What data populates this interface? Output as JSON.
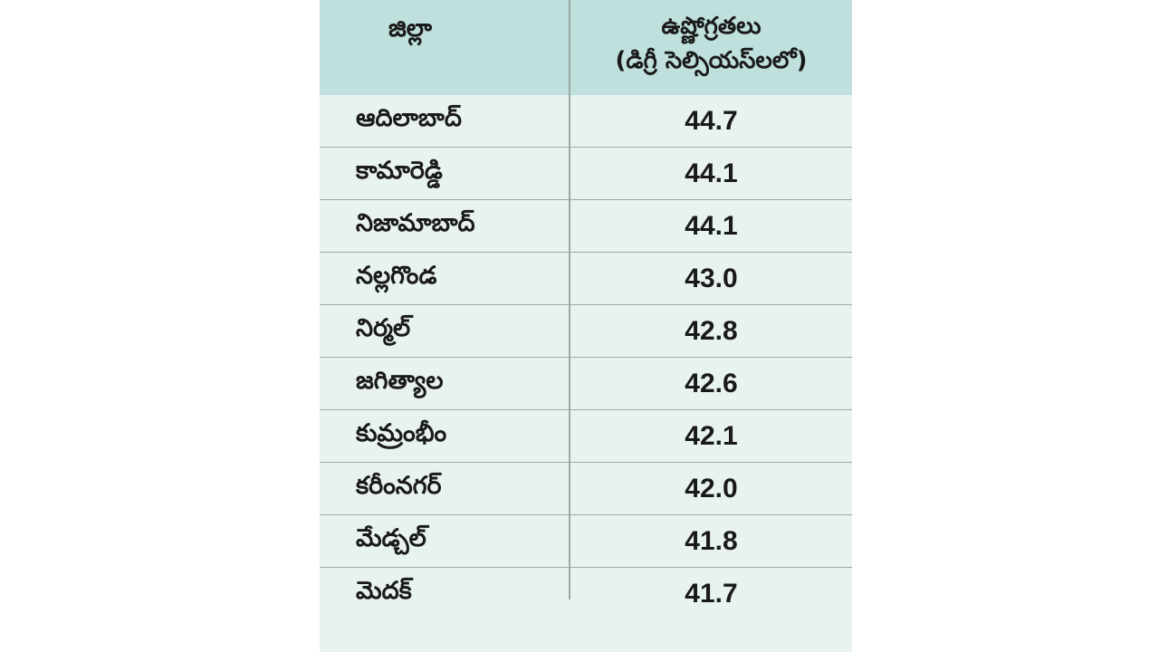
{
  "table": {
    "header": {
      "district": "జిల్లా",
      "temperature_line1": "ఉష్ణోగ్రతలు",
      "temperature_line2": "(డిగ్రీ సెల్సియస్‌లలో)"
    },
    "rows": [
      {
        "district": "ఆదిలాబాద్",
        "temperature": "44.7"
      },
      {
        "district": "కామారెడ్డి",
        "temperature": "44.1"
      },
      {
        "district": "నిజామాబాద్",
        "temperature": "44.1"
      },
      {
        "district": "నల్లగొండ",
        "temperature": "43.0"
      },
      {
        "district": "నిర్మల్",
        "temperature": "42.8"
      },
      {
        "district": "జగిత్యాల",
        "temperature": "42.6"
      },
      {
        "district": "కుమ్రంభీం",
        "temperature": "42.1"
      },
      {
        "district": "కరీంనగర్",
        "temperature": "42.0"
      },
      {
        "district": "మేడ్చల్",
        "temperature": "41.8"
      },
      {
        "district": "మెదక్",
        "temperature": "41.7"
      }
    ]
  },
  "colors": {
    "header_bg": "#bfe0dc",
    "body_bg": "#e8f3f1",
    "divider": "#9aa8a6",
    "text": "#1a1a1a"
  }
}
